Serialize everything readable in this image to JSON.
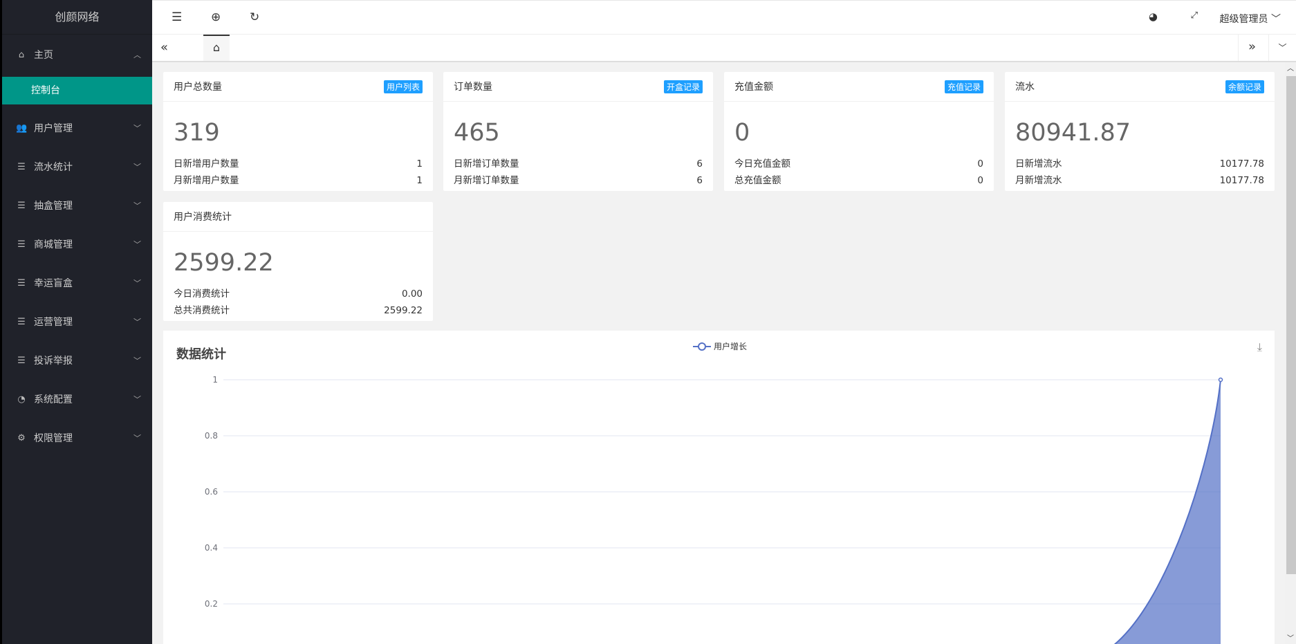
{
  "app": {
    "logo": "创颜网络"
  },
  "sidebar": {
    "home": "主页",
    "console": "控制台",
    "items": [
      {
        "label": "用户管理",
        "icon": "users-icon"
      },
      {
        "label": "流水统计",
        "icon": "list-icon"
      },
      {
        "label": "抽盒管理",
        "icon": "list-icon"
      },
      {
        "label": "商城管理",
        "icon": "list-icon"
      },
      {
        "label": "幸运盲盒",
        "icon": "list-icon"
      },
      {
        "label": "运营管理",
        "icon": "list-icon"
      },
      {
        "label": "投诉举报",
        "icon": "list-icon"
      },
      {
        "label": "系统配置",
        "icon": "config-icon"
      },
      {
        "label": "权限管理",
        "icon": "gear-icon"
      }
    ]
  },
  "topbar": {
    "user": "超级管理员"
  },
  "cards": [
    {
      "title": "用户总数量",
      "badge": "用户列表",
      "value": "319",
      "rows": [
        {
          "label": "日新增用户数量",
          "value": "1"
        },
        {
          "label": "月新增用户数量",
          "value": "1"
        }
      ]
    },
    {
      "title": "订单数量",
      "badge": "开盒记录",
      "value": "465",
      "rows": [
        {
          "label": "日新增订单数量",
          "value": "6"
        },
        {
          "label": "月新增订单数量",
          "value": "6"
        }
      ]
    },
    {
      "title": "充值金额",
      "badge": "充值记录",
      "value": "0",
      "rows": [
        {
          "label": "今日充值金额",
          "value": "0"
        },
        {
          "label": "总充值金额",
          "value": "0"
        }
      ]
    },
    {
      "title": "流水",
      "badge": "余额记录",
      "value": "80941.87",
      "rows": [
        {
          "label": "日新增流水",
          "value": "10177.78"
        },
        {
          "label": "月新增流水",
          "value": "10177.78"
        }
      ]
    },
    {
      "title": "用户消费统计",
      "value": "2599.22",
      "rows": [
        {
          "label": "今日消费统计",
          "value": "0.00"
        },
        {
          "label": "总共消费统计",
          "value": "2599.22"
        }
      ]
    }
  ],
  "chart_data": {
    "type": "area",
    "title": "数据统计",
    "series": [
      {
        "name": "用户增长",
        "values": [
          0,
          0,
          0,
          0,
          0,
          0,
          0,
          1
        ]
      }
    ],
    "yticks": [
      "0.2",
      "0.4",
      "0.6",
      "0.8",
      "1"
    ],
    "ylim": [
      0,
      1
    ],
    "grid": true,
    "legend": "top-center",
    "color": "#5470c6"
  }
}
